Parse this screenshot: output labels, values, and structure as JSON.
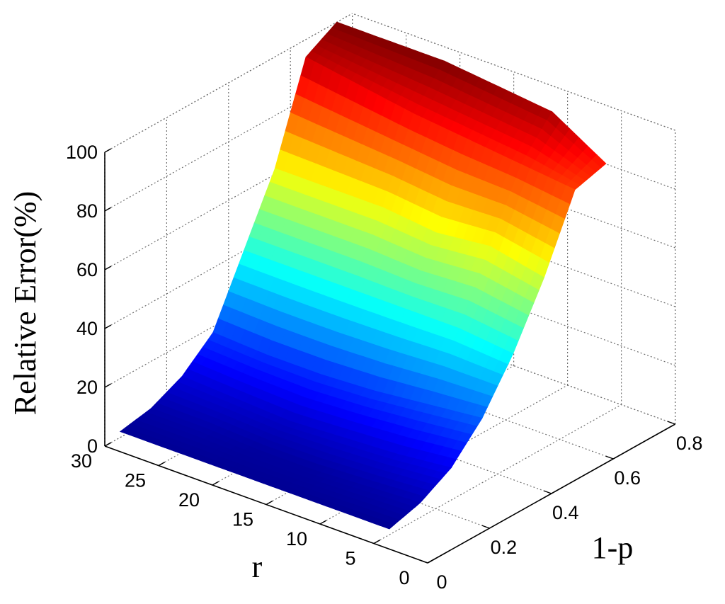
{
  "chart_data": {
    "type": "surface",
    "xlabel": "r",
    "ylabel": "1-p",
    "zlabel": "Relative Error(%)",
    "xlim": [
      0,
      30
    ],
    "ylim": [
      0,
      0.8
    ],
    "zlim": [
      0,
      100
    ],
    "xticks": [
      "0",
      "5",
      "10",
      "15",
      "20",
      "25",
      "30"
    ],
    "yticks": [
      "0",
      "0.2",
      "0.4",
      "0.6",
      "0.8"
    ],
    "zticks": [
      "0",
      "20",
      "40",
      "60",
      "80",
      "100"
    ],
    "colormap": "jet",
    "grid": true,
    "r": [
      5,
      10,
      15,
      20,
      25,
      30
    ],
    "one_minus_p": [
      0.05,
      0.15,
      0.25,
      0.35,
      0.45,
      0.55,
      0.65,
      0.75
    ],
    "relative_error": [
      [
        2,
        2,
        2,
        2,
        2,
        2
      ],
      [
        5,
        4,
        3,
        3,
        4,
        4
      ],
      [
        11,
        9,
        8,
        7,
        8,
        9
      ],
      [
        22,
        20,
        18,
        17,
        17,
        18
      ],
      [
        38,
        40,
        40,
        40,
        40,
        40
      ],
      [
        58,
        62,
        60,
        62,
        62,
        62
      ],
      [
        82,
        84,
        86,
        88,
        91,
        94
      ],
      [
        85,
        96,
        98,
        100,
        100,
        100
      ]
    ]
  }
}
